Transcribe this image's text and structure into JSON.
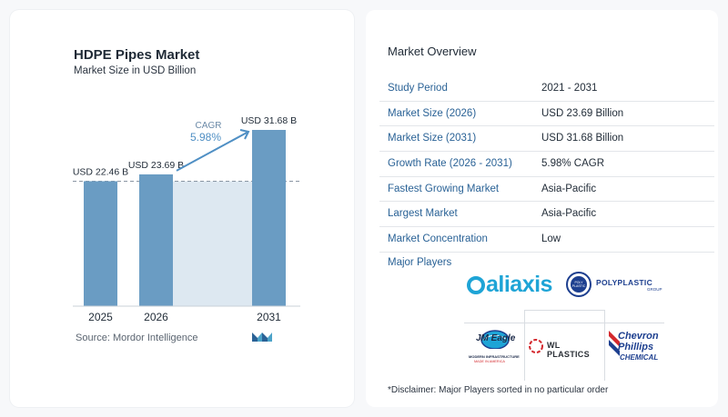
{
  "chart_data": {
    "type": "bar",
    "title": "HDPE Pipes Market",
    "subtitle": "Market Size in USD Billion",
    "categories": [
      "2025",
      "2026",
      "2031"
    ],
    "values": [
      22.46,
      23.69,
      31.68
    ],
    "value_labels": [
      "USD 22.46 B",
      "USD 23.69 B",
      "USD 31.68 B"
    ],
    "cagr_label": "CAGR",
    "cagr_value": "5.98%",
    "bar_color": "#6a9cc3",
    "reference_line": 22.46
  },
  "source": "Source:  Mordor Intelligence",
  "overview": {
    "title": "Market Overview",
    "rows": [
      {
        "label": "Study Period",
        "value": "2021 - 2031"
      },
      {
        "label": "Market Size (2026)",
        "value": "USD 23.69 Billion"
      },
      {
        "label": "Market Size (2031)",
        "value": "USD 31.68 Billion"
      },
      {
        "label": "Growth Rate (2026 - 2031)",
        "value": "5.98% CAGR"
      },
      {
        "label": "Fastest Growing Market",
        "value": "Asia-Pacific"
      },
      {
        "label": "Largest Market",
        "value": "Asia-Pacific"
      },
      {
        "label": "Market Concentration",
        "value": "Low"
      }
    ]
  },
  "players": {
    "title": "Major Players",
    "logos": {
      "aliaxis": "aliaxis",
      "polyplastic": "POLYPLASTIC",
      "polyplastic_sub": "GROUP",
      "polyplastic_badge": "POLY PLASTIC",
      "jm_eagle": "JM Eagle",
      "jm_sub1": "MODERN INFRASTRUCTURE",
      "jm_sub2": "MADE IN AMERICA",
      "wl_plastics": "WL PLASTICS",
      "chevron_1": "Chevron",
      "chevron_2": "Phillips",
      "chevron_3": "CHEMICAL"
    }
  },
  "disclaimer": "*Disclaimer: Major Players sorted in no particular order",
  "colors": {
    "accent_blue": "#2a6296",
    "bar": "#6a9cc3",
    "bar_shadow": "#dde8f1",
    "aliaxis_blue": "#1ea4d6",
    "chevron_blue": "#1d3f8f",
    "chevron_red": "#d4282d"
  }
}
